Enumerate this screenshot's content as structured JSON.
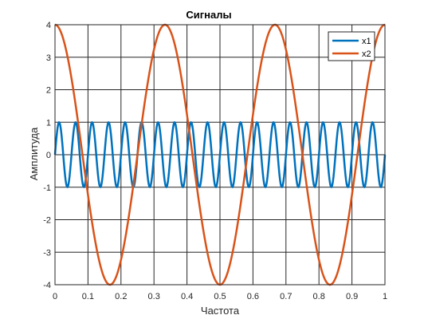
{
  "chart_data": {
    "type": "line",
    "title": "Сигналы",
    "xlabel": "Частота",
    "ylabel": "Амплитуда",
    "xlim": [
      0,
      1
    ],
    "ylim": [
      -4,
      4
    ],
    "x_ticks": [
      0,
      0.1,
      0.2,
      0.3,
      0.4,
      0.5,
      0.6,
      0.7,
      0.8,
      0.9,
      1
    ],
    "x_tick_labels": [
      "0",
      "0.1",
      "0.2",
      "0.3",
      "0.4",
      "0.5",
      "0.6",
      "0.7",
      "0.8",
      "0.9",
      "1"
    ],
    "y_ticks": [
      4,
      3,
      2,
      1,
      0,
      -1,
      -2,
      -3,
      -4
    ],
    "y_tick_labels": [
      "4",
      "3",
      "2",
      "1",
      "0",
      "-1",
      "-2",
      "-3",
      "-4"
    ],
    "grid": true,
    "legend_position": "top-right",
    "x_step": 0.002,
    "series": [
      {
        "name": "x1",
        "color": "#0072BD",
        "formula": "sin(2*pi*20*x)",
        "amplitude": 1,
        "frequency": 20
      },
      {
        "name": "x2",
        "color": "#D95319",
        "formula": "4*cos(2*pi*3*x)",
        "amplitude": 4,
        "frequency": 3
      }
    ]
  }
}
